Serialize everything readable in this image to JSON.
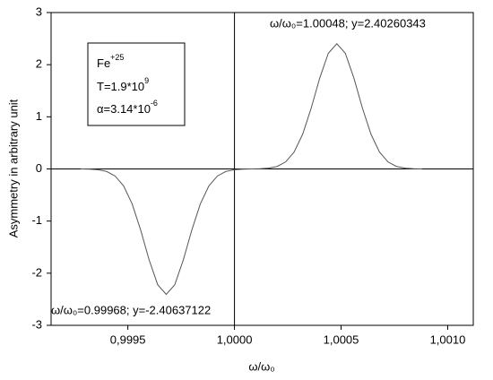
{
  "chart_data": {
    "type": "line",
    "x_label": "ω/ω₀",
    "y_label": "Asymmetry in arbitrary unit",
    "x": [
      0.99928,
      0.99932,
      0.99936,
      0.9994,
      0.99944,
      0.99948,
      0.99952,
      0.99956,
      0.9996,
      0.99964,
      0.99968,
      0.99972,
      0.99976,
      0.9998,
      0.99984,
      0.99988,
      0.99992,
      0.99996,
      1.0,
      1.00004,
      1.00008,
      1.00012,
      1.00016,
      1.0002,
      1.00024,
      1.00028,
      1.00032,
      1.00036,
      1.0004,
      1.00044,
      1.00048,
      1.00052,
      1.00056,
      1.0006,
      1.00064,
      1.00068,
      1.00072,
      1.00076,
      1.0008,
      1.00084,
      1.00088
    ],
    "series": [
      {
        "color": "#555555",
        "values": [
          -0.0007,
          -0.0036,
          -0.0144,
          -0.0476,
          -0.135,
          -0.3256,
          -0.669,
          -1.1714,
          -1.7473,
          -2.2213,
          -2.4064,
          -2.2213,
          -1.7473,
          -1.1714,
          -0.669,
          -0.3256,
          -0.135,
          -0.0476,
          -0.0144,
          -0.0036,
          0,
          0.0036,
          0.0144,
          0.0476,
          0.1348,
          0.3251,
          0.6679,
          1.1696,
          1.7445,
          2.2178,
          2.4026,
          2.2178,
          1.7445,
          1.1696,
          0.6679,
          0.3251,
          0.1348,
          0.0476,
          0.0144,
          0.0036,
          0.0007
        ]
      }
    ],
    "xlim": [
      0.99914,
      1.00112
    ],
    "ylim": [
      -3,
      3
    ],
    "xticks": [
      {
        "value": 0.9995,
        "label": "0,9995"
      },
      {
        "value": 1.0,
        "label": "1,0000"
      },
      {
        "value": 1.0005,
        "label": "1,0005"
      },
      {
        "value": 1.001,
        "label": "1,0010"
      }
    ],
    "yticks": [
      -3,
      -2,
      -1,
      0,
      1,
      2,
      3
    ],
    "hlines": [
      0
    ],
    "vlines": [
      1.0
    ],
    "annotations": [
      "ω/ω₀=1.00048; y=2.40260343",
      "ω/ω₀=0.99968; y=-2.40637122"
    ],
    "inset": [
      {
        "text": "Fe",
        "sup": "+25"
      },
      {
        "text": "T=1.9*10",
        "sup": "9"
      },
      {
        "text": "α=3.14*10",
        "sup": "-6"
      }
    ]
  }
}
